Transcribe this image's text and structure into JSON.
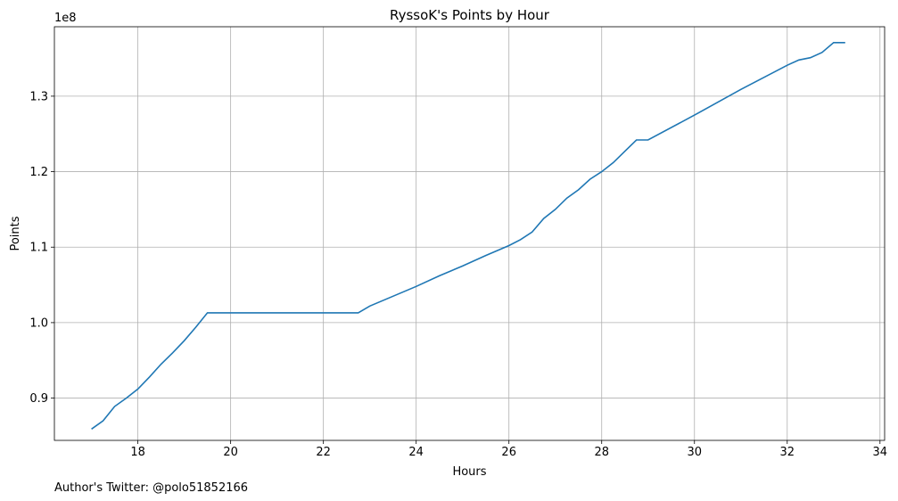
{
  "chart_data": {
    "type": "line",
    "title": "RyssoK's Points by Hour",
    "xlabel": "Hours",
    "ylabel": "Points",
    "y_multiplier_label": "1e8",
    "xlim": [
      16.2,
      34.1
    ],
    "ylim": [
      0.844,
      1.392
    ],
    "grid": true,
    "x_ticks": [
      18,
      20,
      22,
      24,
      26,
      28,
      30,
      32,
      34
    ],
    "y_ticks": [
      0.9,
      1.0,
      1.1,
      1.2,
      1.3
    ],
    "x_tick_labels": [
      "18",
      "20",
      "22",
      "24",
      "26",
      "28",
      "30",
      "32",
      "34"
    ],
    "y_tick_labels": [
      "0.9",
      "1.0",
      "1.1",
      "1.2",
      "1.3"
    ],
    "line_color": "#1f77b4",
    "grid_color": "#b0b0b0",
    "series": [
      {
        "x": [
          17.0,
          17.25,
          17.5,
          17.75,
          18.0,
          18.25,
          18.5,
          18.75,
          19.0,
          19.25,
          19.5,
          19.75,
          20.0,
          22.0,
          22.75,
          23.0,
          23.5,
          24.0,
          24.5,
          25.0,
          25.5,
          26.0,
          26.25,
          26.5,
          26.75,
          27.0,
          27.25,
          27.5,
          27.75,
          28.0,
          28.25,
          28.5,
          28.75,
          29.0,
          30.0,
          31.0,
          32.0,
          32.25,
          32.5,
          32.75,
          33.0,
          33.25
        ],
        "y": [
          0.859,
          0.87,
          0.889,
          0.9,
          0.912,
          0.928,
          0.945,
          0.96,
          0.976,
          0.994,
          1.013,
          1.013,
          1.013,
          1.013,
          1.013,
          1.022,
          1.035,
          1.048,
          1.062,
          1.075,
          1.089,
          1.102,
          1.11,
          1.12,
          1.138,
          1.15,
          1.165,
          1.176,
          1.19,
          1.2,
          1.212,
          1.227,
          1.242,
          1.242,
          1.275,
          1.309,
          1.341,
          1.348,
          1.351,
          1.358,
          1.371,
          1.371
        ]
      }
    ]
  },
  "footnote": "Author's Twitter: @polo51852166"
}
